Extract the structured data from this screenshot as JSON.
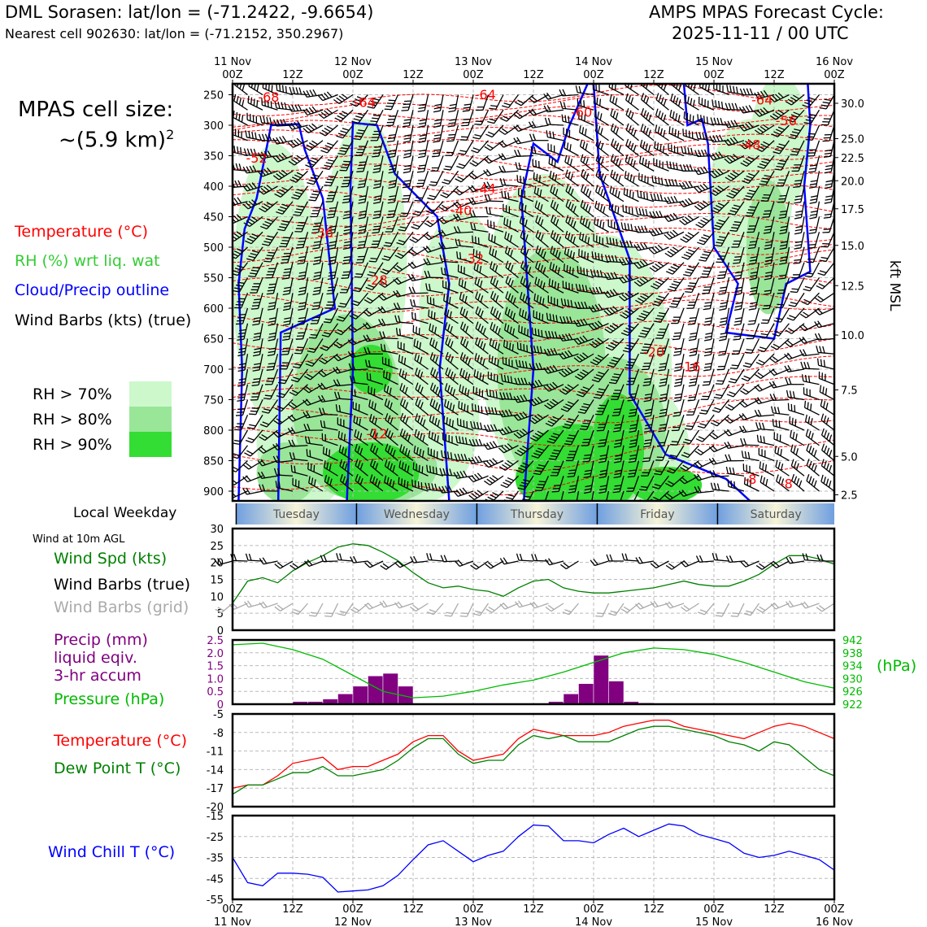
{
  "header": {
    "station": "DML Sorasen: lat/lon = (-71.2422, -9.6654)",
    "nearest": "Nearest cell 902630: lat/lon = (-71.2152, 350.2967)",
    "cycle_title": "AMPS MPAS Forecast Cycle:",
    "cycle_date": "2025-11-11 / 00 UTC"
  },
  "legend": {
    "cell_size_title": "MPAS cell size:",
    "cell_size_value": "~(5.9 km)",
    "cell_size_exp": "2",
    "temperature": "Temperature (°C)",
    "rh": "RH (%) wrt liq. wat",
    "cloud": "Cloud/Precip outline",
    "wind_barbs": "Wind Barbs (kts) (true)",
    "rh70": "RH > 70%",
    "rh80": "RH > 80%",
    "rh90": "RH > 90%",
    "local_weekday": "Local Weekday",
    "wind_10m": "Wind at 10m AGL",
    "wind_spd": "Wind Spd (kts)",
    "wind_barbs_true": "Wind Barbs (true)",
    "wind_barbs_grid": "Wind Barbs (grid)",
    "precip_1": "Precip (mm)",
    "precip_2": "liquid eqiv.",
    "precip_3": "3-hr accum",
    "pressure": "Pressure (hPa)",
    "pressure_unit": "(hPa)",
    "temp2": "Temperature (°C)",
    "dewpoint": "Dew Point T (°C)",
    "windchill": "Wind Chill T (°C)",
    "kft_label": "kft MSL"
  },
  "colors": {
    "temperature": "#ff0000",
    "rh_label": "#33cc33",
    "cloud": "#0000ff",
    "rh70": "#ccf8cc",
    "rh80": "#99e699",
    "rh90": "#33dd33",
    "wind_spd": "#008000",
    "barbs_grid": "#aaaaaa",
    "precip": "#800080",
    "pressure": "#00bb00",
    "dewpoint": "#008000",
    "windchill": "#0000ff"
  },
  "chart_data": [
    {
      "name": "cross-section",
      "type": "heatmap",
      "time_top_labels": [
        "11 Nov\n00Z",
        "12Z",
        "12 Nov\n00Z",
        "12Z",
        "13 Nov\n00Z",
        "12Z",
        "14 Nov\n00Z",
        "12Z",
        "15 Nov\n00Z",
        "12Z",
        "16 Nov\n00Z"
      ],
      "pressure_ticks": [
        "250",
        "300",
        "350",
        "400",
        "450",
        "500",
        "550",
        "600",
        "650",
        "700",
        "750",
        "800",
        "850",
        "900"
      ],
      "kft_ticks": [
        "30.0",
        "25.0",
        "22.5",
        "20.0",
        "17.5",
        "15.0",
        "12.5",
        "10.0",
        "7.5",
        "5.0",
        "2.5"
      ],
      "temp_contour_labels": [
        {
          "text": "-68",
          "t": 0.3,
          "p": 253
        },
        {
          "text": "-64",
          "t": 1.1,
          "p": 262
        },
        {
          "text": "-64",
          "t": 2.1,
          "p": 249
        },
        {
          "text": "-60",
          "t": 2.9,
          "p": 278
        },
        {
          "text": "-64",
          "t": 4.4,
          "p": 258
        },
        {
          "text": "-56",
          "t": 4.6,
          "p": 292
        },
        {
          "text": "-52",
          "t": 0.2,
          "p": 353
        },
        {
          "text": "-48",
          "t": 4.3,
          "p": 331
        },
        {
          "text": "-44",
          "t": 2.1,
          "p": 403
        },
        {
          "text": "-40",
          "t": 1.9,
          "p": 439
        },
        {
          "text": "-36",
          "t": 0.75,
          "p": 475
        },
        {
          "text": "-32",
          "t": 2.0,
          "p": 518
        },
        {
          "text": "-28",
          "t": 1.2,
          "p": 553
        },
        {
          "text": "-20",
          "t": 3.5,
          "p": 671
        },
        {
          "text": "-16",
          "t": 3.8,
          "p": 695
        },
        {
          "text": "-12",
          "t": 1.2,
          "p": 805
        },
        {
          "text": "-8",
          "t": 4.3,
          "p": 880
        },
        {
          "text": "-8",
          "t": 4.6,
          "p": 887
        }
      ],
      "legend_levels": [
        "RH > 70%",
        "RH > 80%",
        "RH > 90%"
      ]
    },
    {
      "name": "weekday-band",
      "type": "table",
      "days": [
        "Tuesday",
        "Wednesday",
        "Thursday",
        "Friday",
        "Saturday"
      ]
    },
    {
      "name": "wind-10m",
      "type": "line",
      "ylim": [
        0,
        30
      ],
      "yticks": [
        "30",
        "25",
        "20",
        "15",
        "10",
        "5",
        "0"
      ],
      "series": [
        {
          "name": "Wind Spd (kts)",
          "x": [
            0,
            0.125,
            0.25,
            0.375,
            0.5,
            0.625,
            0.75,
            0.875,
            1,
            1.125,
            1.25,
            1.375,
            1.5,
            1.625,
            1.75,
            1.875,
            2,
            2.125,
            2.25,
            2.375,
            2.5,
            2.625,
            2.75,
            2.875,
            3,
            3.125,
            3.25,
            3.375,
            3.5,
            3.625,
            3.75,
            3.875,
            4,
            4.125,
            4.25,
            4.375,
            4.5,
            4.625,
            4.75,
            4.875,
            5
          ],
          "values": [
            8,
            14.5,
            15.5,
            14,
            17.5,
            20,
            22,
            24.5,
            25.5,
            25,
            23,
            20.5,
            17,
            14,
            12.5,
            13,
            12,
            11.5,
            10,
            12.5,
            14.5,
            15,
            12.5,
            11.5,
            11,
            11,
            11.5,
            12,
            12.5,
            13.5,
            14.5,
            13.5,
            13,
            13,
            14.5,
            16.5,
            19.5,
            22,
            22,
            21,
            19.5
          ]
        }
      ]
    },
    {
      "name": "precip-pressure",
      "type": "bar",
      "ylim": [
        0,
        2.5
      ],
      "yticks": [
        "2.5",
        "2.0",
        "1.5",
        "1.0",
        "0.5",
        "0"
      ],
      "precip_x": [
        0.5,
        0.625,
        0.75,
        0.875,
        1,
        1.125,
        1.25,
        1.375,
        2.625,
        2.75,
        2.875,
        3,
        3.125,
        3.25,
        3.375
      ],
      "precip_values": [
        0.1,
        0.1,
        0.2,
        0.4,
        0.7,
        1.1,
        1.2,
        0.7,
        0.1,
        0.4,
        0.8,
        1.9,
        0.9,
        0.1,
        0.05
      ],
      "pressure_ylim": [
        922,
        942
      ],
      "pressure_ticks": [
        "942",
        "938",
        "934",
        "930",
        "926",
        "922"
      ],
      "pressure_x": [
        0,
        0.25,
        0.5,
        0.75,
        1,
        1.25,
        1.5,
        1.75,
        2,
        2.25,
        2.5,
        2.75,
        3,
        3.25,
        3.5,
        3.75,
        4,
        4.25,
        4.5,
        4.75,
        5
      ],
      "pressure_values": [
        940.5,
        941,
        939,
        936,
        931,
        926,
        924,
        924.5,
        926,
        928,
        929.5,
        932,
        935,
        938,
        939.5,
        939,
        937.5,
        935,
        932,
        929,
        927
      ]
    },
    {
      "name": "temp-dewpoint",
      "type": "line",
      "ylim": [
        -20,
        -5
      ],
      "yticks": [
        "-5",
        "-8",
        "-11",
        "-14",
        "-17",
        "-20"
      ],
      "x": [
        0,
        0.125,
        0.25,
        0.375,
        0.5,
        0.625,
        0.75,
        0.875,
        1,
        1.125,
        1.25,
        1.375,
        1.5,
        1.625,
        1.75,
        1.875,
        2,
        2.125,
        2.25,
        2.375,
        2.5,
        2.625,
        2.75,
        2.875,
        3,
        3.125,
        3.25,
        3.375,
        3.5,
        3.625,
        3.75,
        3.875,
        4,
        4.125,
        4.25,
        4.375,
        4.5,
        4.625,
        4.75,
        4.875,
        5
      ],
      "series": [
        {
          "name": "Temperature (°C)",
          "values": [
            -17,
            -16.5,
            -16.5,
            -15,
            -13,
            -12.5,
            -12,
            -14,
            -13.5,
            -13.5,
            -12.5,
            -11.5,
            -9.5,
            -8.5,
            -8.5,
            -11,
            -12.5,
            -12,
            -11.5,
            -9,
            -7.5,
            -8,
            -8.5,
            -8.5,
            -8.5,
            -8,
            -7,
            -6.5,
            -6,
            -6,
            -7,
            -7.5,
            -8,
            -8.5,
            -9,
            -8,
            -7,
            -6.5,
            -7,
            -8,
            -9
          ]
        },
        {
          "name": "Dew Point T (°C)",
          "values": [
            -18,
            -16.5,
            -16.5,
            -15.5,
            -14.5,
            -14.5,
            -13.5,
            -15,
            -15,
            -14.5,
            -14,
            -12.5,
            -10.5,
            -9,
            -9,
            -11.5,
            -13,
            -12.5,
            -12.5,
            -10,
            -8.5,
            -9,
            -8.5,
            -9.5,
            -9.5,
            -9.5,
            -8.5,
            -7.5,
            -7,
            -7,
            -7.5,
            -8,
            -8.5,
            -9.5,
            -10,
            -11,
            -9.5,
            -10,
            -12,
            -14,
            -15
          ]
        }
      ]
    },
    {
      "name": "wind-chill",
      "type": "line",
      "ylim": [
        -55,
        -15
      ],
      "yticks": [
        "-15",
        "-25",
        "-35",
        "-45",
        "-55"
      ],
      "x_tick_labels": [
        "00Z\n11 Nov",
        "12Z",
        "00Z\n12 Nov",
        "12Z",
        "00Z\n13 Nov",
        "12Z",
        "00Z\n14 Nov",
        "12Z",
        "00Z\n15 Nov",
        "12Z",
        "00Z\n16 Nov"
      ],
      "x": [
        0,
        0.125,
        0.25,
        0.375,
        0.5,
        0.625,
        0.75,
        0.875,
        1,
        1.125,
        1.25,
        1.375,
        1.5,
        1.625,
        1.75,
        1.875,
        2,
        2.125,
        2.25,
        2.375,
        2.5,
        2.625,
        2.75,
        2.875,
        3,
        3.125,
        3.25,
        3.375,
        3.5,
        3.625,
        3.75,
        3.875,
        4,
        4.125,
        4.25,
        4.375,
        4.5,
        4.625,
        4.75,
        4.875,
        5
      ],
      "series": [
        {
          "name": "Wind Chill T (°C)",
          "values": [
            -35,
            -47,
            -48.5,
            -42.5,
            -42.5,
            -43,
            -44.5,
            -51.5,
            -51,
            -50.5,
            -48.5,
            -43.5,
            -36,
            -29,
            -27,
            -32,
            -37,
            -34,
            -32,
            -25,
            -19.5,
            -20,
            -27,
            -27,
            -28,
            -24,
            -21,
            -25,
            -22,
            -19,
            -20,
            -24,
            -26,
            -28,
            -33,
            -35,
            -34,
            -32,
            -34,
            -36,
            -41
          ]
        }
      ]
    }
  ]
}
